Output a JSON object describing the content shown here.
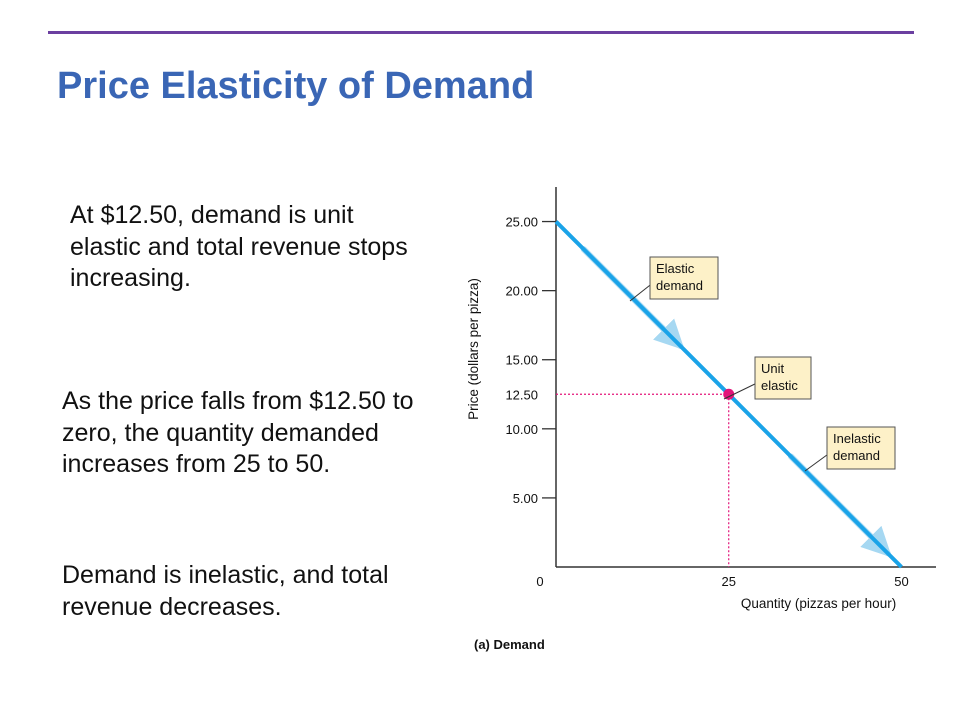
{
  "slide": {
    "title": "Price Elasticity of Demand",
    "paragraphs": [
      "At $12.50, demand is unit elastic and total revenue stops increasing.",
      "As the price falls from $12.50 to zero, the quantity demanded increases from 25 to 50.",
      "Demand is inelastic, and total revenue decreases."
    ],
    "accent_color": "#6b3fa0",
    "title_color": "#3a66b5"
  },
  "chart_data": {
    "type": "line",
    "title": "",
    "caption": "(a) Demand",
    "xlabel": "Quantity (pizzas per hour)",
    "ylabel": "Price (dollars per pizza)",
    "xlim": [
      0,
      55
    ],
    "ylim": [
      0,
      27.5
    ],
    "origin_label": "0",
    "x_ticks": [
      {
        "value": 25,
        "label": "25",
        "color": "#e2157a"
      },
      {
        "value": 50,
        "label": "50",
        "color": "#111111"
      }
    ],
    "y_ticks": [
      {
        "value": 5,
        "label": "5.00"
      },
      {
        "value": 10,
        "label": "10.00"
      },
      {
        "value": 15,
        "label": "15.00"
      },
      {
        "value": 20,
        "label": "20.00"
      },
      {
        "value": 25,
        "label": "25.00"
      }
    ],
    "highlight_tick": {
      "value": 12.5,
      "label": "12.50",
      "color": "#e2157a"
    },
    "series": [
      {
        "x": [
          0,
          50
        ],
        "y": [
          25,
          0
        ],
        "color": "#1aa3e8"
      }
    ],
    "point": {
      "x": 25,
      "y": 12.5,
      "color": "#e2157a"
    },
    "callouts": [
      {
        "lines": [
          "Elastic",
          "demand"
        ],
        "anchor_x": 6,
        "anchor_y": 22
      },
      {
        "lines": [
          "Unit",
          "elastic"
        ],
        "anchor_x": 25.5,
        "anchor_y": 12.5
      },
      {
        "lines": [
          "Inelastic",
          "demand"
        ],
        "anchor_x": 41,
        "anchor_y": 4.5
      }
    ],
    "arrow_segments": [
      [
        3,
        17
      ],
      [
        33,
        47
      ]
    ],
    "grid": false
  }
}
